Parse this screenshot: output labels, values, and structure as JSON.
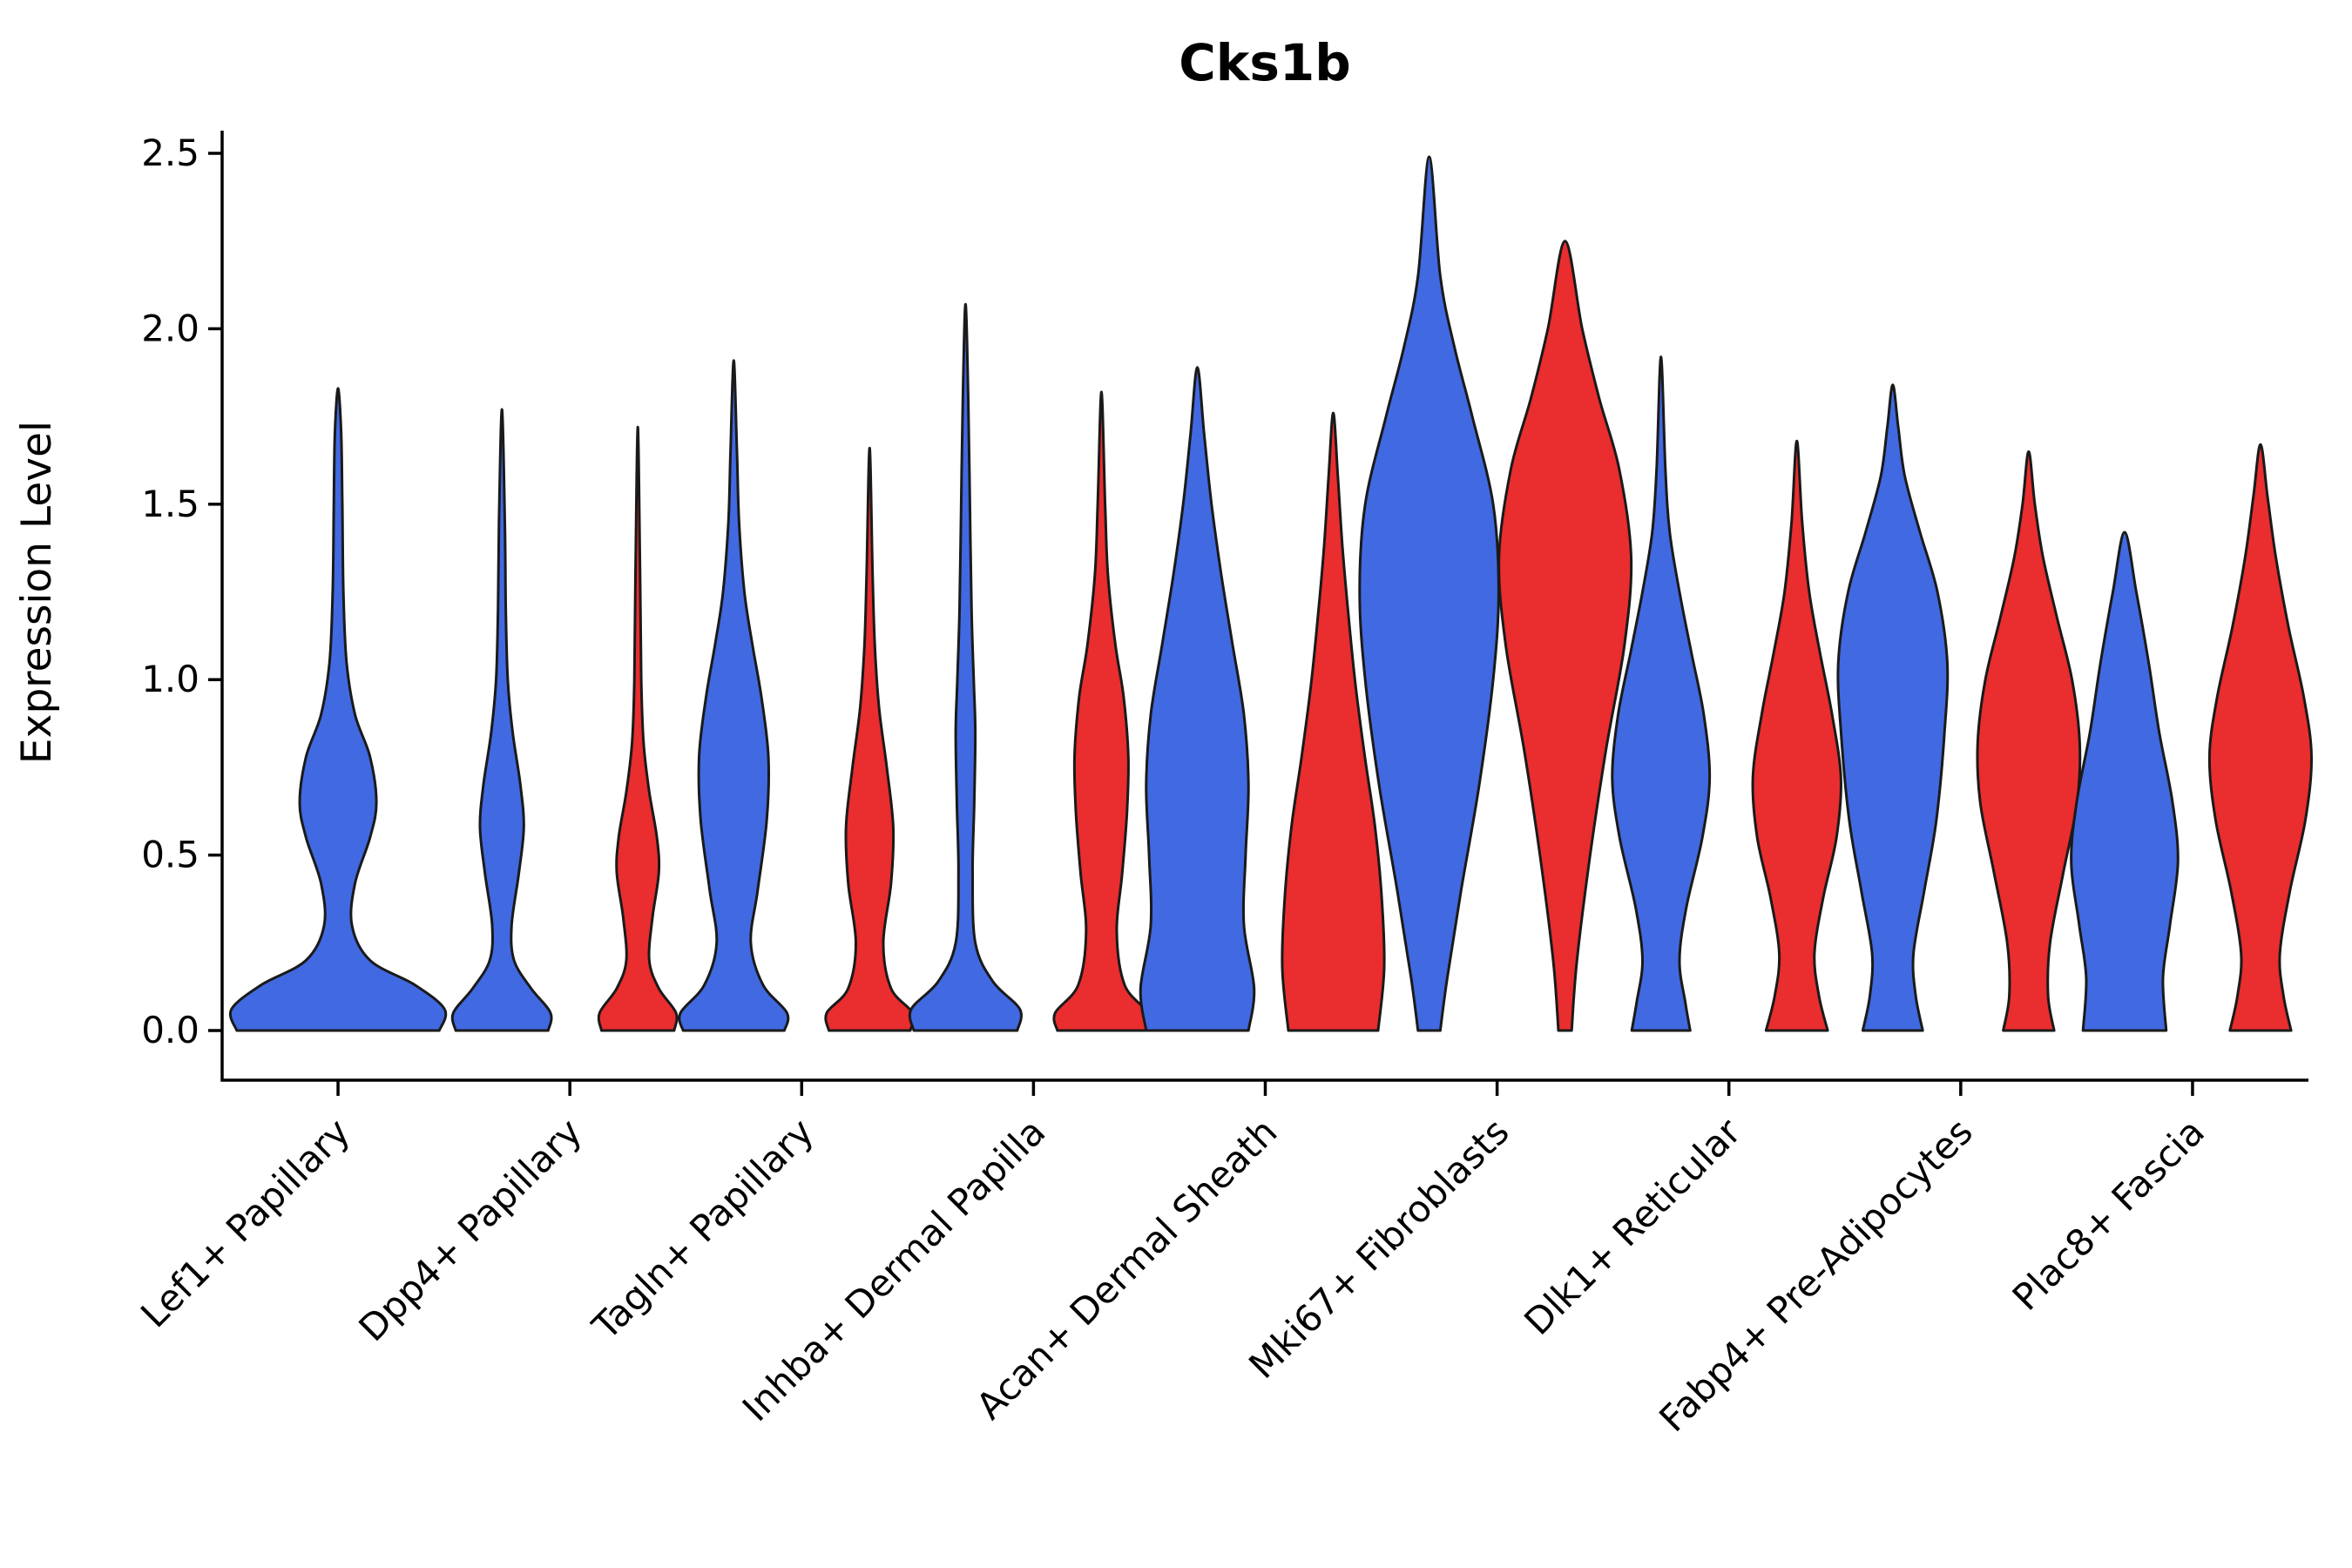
{
  "figure": {
    "title": "Cks1b",
    "ylabel": "Expression Level"
  },
  "chart_data": {
    "type": "violin",
    "title": "Cks1b",
    "xlabel": "",
    "ylabel": "Expression Level",
    "ylim": [
      0,
      2.58
    ],
    "yticks": [
      0.0,
      0.5,
      1.0,
      1.5,
      2.0,
      2.5
    ],
    "grid": false,
    "legend": "none",
    "groups": [
      {
        "name": "group-1",
        "color": "#4169E1"
      },
      {
        "name": "group-2",
        "color": "#EA2D2E"
      }
    ],
    "categories": [
      "Lef1+ Papillary",
      "Dpp4+ Papillary",
      "Tagln+ Papillary",
      "Inhba+ Dermal Papilla",
      "Acan+ Dermal Sheath",
      "Mki67+ Fibroblasts",
      "Dlk1+ Reticular",
      "Fabp4+ Pre-Adipocytes",
      "Plac8+ Fascia"
    ],
    "violins": [
      {
        "category": "Lef1+ Papillary",
        "category_index": 0,
        "group": 0,
        "position": "center",
        "peak_expression": 1.83,
        "rel_width": 0.92,
        "profile": [
          [
            0,
            0.95
          ],
          [
            0.06,
            1.0
          ],
          [
            0.13,
            0.72
          ],
          [
            0.2,
            0.3
          ],
          [
            0.3,
            0.13
          ],
          [
            0.42,
            0.16
          ],
          [
            0.55,
            0.3
          ],
          [
            0.65,
            0.36
          ],
          [
            0.78,
            0.3
          ],
          [
            0.9,
            0.16
          ],
          [
            1.05,
            0.08
          ],
          [
            1.25,
            0.05
          ],
          [
            1.5,
            0.04
          ],
          [
            1.7,
            0.03
          ],
          [
            1.83,
            0
          ]
        ]
      },
      {
        "category": "Dpp4+ Papillary",
        "category_index": 1,
        "group": 0,
        "position": "left",
        "peak_expression": 1.77,
        "rel_width": 0.42,
        "profile": [
          [
            0,
            0.95
          ],
          [
            0.05,
            1.0
          ],
          [
            0.12,
            0.6
          ],
          [
            0.2,
            0.25
          ],
          [
            0.3,
            0.2
          ],
          [
            0.45,
            0.35
          ],
          [
            0.58,
            0.45
          ],
          [
            0.7,
            0.38
          ],
          [
            0.85,
            0.22
          ],
          [
            1.0,
            0.12
          ],
          [
            1.2,
            0.08
          ],
          [
            1.45,
            0.06
          ],
          [
            1.77,
            0
          ]
        ]
      },
      {
        "category": "Dpp4+ Papillary",
        "category_index": 1,
        "group": 1,
        "position": "right",
        "peak_expression": 1.72,
        "rel_width": 0.33,
        "profile": [
          [
            0,
            0.95
          ],
          [
            0.05,
            1.0
          ],
          [
            0.12,
            0.55
          ],
          [
            0.2,
            0.3
          ],
          [
            0.32,
            0.38
          ],
          [
            0.45,
            0.55
          ],
          [
            0.55,
            0.5
          ],
          [
            0.68,
            0.3
          ],
          [
            0.82,
            0.15
          ],
          [
            1.0,
            0.09
          ],
          [
            1.3,
            0.06
          ],
          [
            1.72,
            0
          ]
        ]
      },
      {
        "category": "Tagln+ Papillary",
        "category_index": 2,
        "group": 0,
        "position": "left",
        "peak_expression": 1.91,
        "rel_width": 0.46,
        "profile": [
          [
            0,
            0.95
          ],
          [
            0.05,
            1.0
          ],
          [
            0.13,
            0.55
          ],
          [
            0.25,
            0.32
          ],
          [
            0.4,
            0.45
          ],
          [
            0.6,
            0.62
          ],
          [
            0.78,
            0.65
          ],
          [
            0.95,
            0.52
          ],
          [
            1.1,
            0.35
          ],
          [
            1.25,
            0.2
          ],
          [
            1.45,
            0.1
          ],
          [
            1.65,
            0.06
          ],
          [
            1.91,
            0
          ]
        ]
      },
      {
        "category": "Tagln+ Papillary",
        "category_index": 2,
        "group": 1,
        "position": "right",
        "peak_expression": 1.66,
        "rel_width": 0.37,
        "profile": [
          [
            0,
            0.95
          ],
          [
            0.05,
            1.0
          ],
          [
            0.12,
            0.5
          ],
          [
            0.25,
            0.32
          ],
          [
            0.42,
            0.5
          ],
          [
            0.58,
            0.55
          ],
          [
            0.75,
            0.4
          ],
          [
            0.92,
            0.22
          ],
          [
            1.1,
            0.12
          ],
          [
            1.3,
            0.07
          ],
          [
            1.66,
            0
          ]
        ]
      },
      {
        "category": "Inhba+ Dermal Papilla",
        "category_index": 3,
        "group": 0,
        "position": "left",
        "peak_expression": 2.07,
        "rel_width": 0.47,
        "profile": [
          [
            0,
            0.95
          ],
          [
            0.06,
            1.0
          ],
          [
            0.14,
            0.5
          ],
          [
            0.25,
            0.18
          ],
          [
            0.45,
            0.13
          ],
          [
            0.65,
            0.16
          ],
          [
            0.85,
            0.18
          ],
          [
            1.0,
            0.15
          ],
          [
            1.2,
            0.11
          ],
          [
            1.5,
            0.08
          ],
          [
            1.8,
            0.05
          ],
          [
            2.07,
            0
          ]
        ]
      },
      {
        "category": "Inhba+ Dermal Papilla",
        "category_index": 3,
        "group": 1,
        "position": "right",
        "peak_expression": 1.82,
        "rel_width": 0.4,
        "profile": [
          [
            0,
            0.95
          ],
          [
            0.05,
            1.0
          ],
          [
            0.13,
            0.5
          ],
          [
            0.28,
            0.33
          ],
          [
            0.45,
            0.45
          ],
          [
            0.62,
            0.55
          ],
          [
            0.78,
            0.58
          ],
          [
            0.95,
            0.48
          ],
          [
            1.1,
            0.3
          ],
          [
            1.3,
            0.14
          ],
          [
            1.5,
            0.08
          ],
          [
            1.82,
            0
          ]
        ]
      },
      {
        "category": "Acan+ Dermal Sheath",
        "category_index": 4,
        "group": 0,
        "position": "left",
        "peak_expression": 1.89,
        "rel_width": 0.49,
        "profile": [
          [
            0,
            0.9
          ],
          [
            0.12,
            1.0
          ],
          [
            0.3,
            0.82
          ],
          [
            0.5,
            0.85
          ],
          [
            0.7,
            0.9
          ],
          [
            0.9,
            0.82
          ],
          [
            1.1,
            0.62
          ],
          [
            1.3,
            0.42
          ],
          [
            1.5,
            0.25
          ],
          [
            1.7,
            0.12
          ],
          [
            1.89,
            0
          ]
        ]
      },
      {
        "category": "Acan+ Dermal Sheath",
        "category_index": 4,
        "group": 1,
        "position": "right",
        "peak_expression": 1.76,
        "rel_width": 0.44,
        "profile": [
          [
            0,
            0.88
          ],
          [
            0.18,
            1.0
          ],
          [
            0.38,
            0.95
          ],
          [
            0.58,
            0.82
          ],
          [
            0.78,
            0.62
          ],
          [
            0.98,
            0.44
          ],
          [
            1.18,
            0.3
          ],
          [
            1.38,
            0.18
          ],
          [
            1.58,
            0.09
          ],
          [
            1.76,
            0
          ]
        ]
      },
      {
        "category": "Mki67+ Fibroblasts",
        "category_index": 5,
        "group": 0,
        "position": "left",
        "peak_expression": 2.49,
        "rel_width": 0.6,
        "profile": [
          [
            0,
            0.16
          ],
          [
            0.15,
            0.26
          ],
          [
            0.4,
            0.46
          ],
          [
            0.7,
            0.72
          ],
          [
            1.0,
            0.92
          ],
          [
            1.25,
            1.0
          ],
          [
            1.5,
            0.92
          ],
          [
            1.75,
            0.62
          ],
          [
            1.95,
            0.36
          ],
          [
            2.15,
            0.16
          ],
          [
            2.49,
            0
          ]
        ]
      },
      {
        "category": "Mki67+ Fibroblasts",
        "category_index": 5,
        "group": 1,
        "position": "right",
        "peak_expression": 2.25,
        "rel_width": 0.57,
        "profile": [
          [
            0,
            0.1
          ],
          [
            0.2,
            0.18
          ],
          [
            0.5,
            0.38
          ],
          [
            0.8,
            0.62
          ],
          [
            1.1,
            0.9
          ],
          [
            1.35,
            1.0
          ],
          [
            1.6,
            0.82
          ],
          [
            1.8,
            0.52
          ],
          [
            2.0,
            0.26
          ],
          [
            2.25,
            0
          ]
        ]
      },
      {
        "category": "Dlk1+ Reticular",
        "category_index": 6,
        "group": 0,
        "position": "left",
        "peak_expression": 1.92,
        "rel_width": 0.42,
        "profile": [
          [
            0,
            0.6
          ],
          [
            0.08,
            0.5
          ],
          [
            0.2,
            0.38
          ],
          [
            0.35,
            0.52
          ],
          [
            0.55,
            0.85
          ],
          [
            0.72,
            1.0
          ],
          [
            0.9,
            0.88
          ],
          [
            1.08,
            0.62
          ],
          [
            1.25,
            0.38
          ],
          [
            1.42,
            0.18
          ],
          [
            1.6,
            0.09
          ],
          [
            1.92,
            0
          ]
        ]
      },
      {
        "category": "Dlk1+ Reticular",
        "category_index": 6,
        "group": 1,
        "position": "right",
        "peak_expression": 1.68,
        "rel_width": 0.38,
        "profile": [
          [
            0,
            0.7
          ],
          [
            0.1,
            0.5
          ],
          [
            0.22,
            0.4
          ],
          [
            0.38,
            0.6
          ],
          [
            0.55,
            0.9
          ],
          [
            0.72,
            1.0
          ],
          [
            0.9,
            0.8
          ],
          [
            1.08,
            0.52
          ],
          [
            1.25,
            0.28
          ],
          [
            1.45,
            0.12
          ],
          [
            1.68,
            0
          ]
        ]
      },
      {
        "category": "Fabp4+ Pre-Adipocytes",
        "category_index": 7,
        "group": 0,
        "position": "left",
        "peak_expression": 1.84,
        "rel_width": 0.47,
        "profile": [
          [
            0,
            0.55
          ],
          [
            0.1,
            0.42
          ],
          [
            0.22,
            0.38
          ],
          [
            0.4,
            0.58
          ],
          [
            0.6,
            0.8
          ],
          [
            0.85,
            0.95
          ],
          [
            1.05,
            1.0
          ],
          [
            1.25,
            0.82
          ],
          [
            1.42,
            0.5
          ],
          [
            1.58,
            0.22
          ],
          [
            1.72,
            0.1
          ],
          [
            1.84,
            0
          ]
        ]
      },
      {
        "category": "Fabp4+ Pre-Adipocytes",
        "category_index": 7,
        "group": 1,
        "position": "right",
        "peak_expression": 1.65,
        "rel_width": 0.44,
        "profile": [
          [
            0,
            0.5
          ],
          [
            0.1,
            0.38
          ],
          [
            0.25,
            0.42
          ],
          [
            0.45,
            0.68
          ],
          [
            0.65,
            0.95
          ],
          [
            0.82,
            1.0
          ],
          [
            1.0,
            0.85
          ],
          [
            1.18,
            0.55
          ],
          [
            1.35,
            0.28
          ],
          [
            1.5,
            0.12
          ],
          [
            1.65,
            0
          ]
        ]
      },
      {
        "category": "Plac8+ Fascia",
        "category_index": 8,
        "group": 0,
        "position": "left",
        "peak_expression": 1.42,
        "rel_width": 0.46,
        "profile": [
          [
            0,
            0.78
          ],
          [
            0.15,
            0.72
          ],
          [
            0.3,
            0.85
          ],
          [
            0.48,
            1.0
          ],
          [
            0.65,
            0.9
          ],
          [
            0.85,
            0.65
          ],
          [
            1.05,
            0.45
          ],
          [
            1.25,
            0.22
          ],
          [
            1.42,
            0
          ]
        ]
      },
      {
        "category": "Plac8+ Fascia",
        "category_index": 8,
        "group": 1,
        "position": "right",
        "peak_expression": 1.67,
        "rel_width": 0.44,
        "profile": [
          [
            0,
            0.6
          ],
          [
            0.1,
            0.45
          ],
          [
            0.22,
            0.38
          ],
          [
            0.4,
            0.58
          ],
          [
            0.6,
            0.88
          ],
          [
            0.78,
            1.0
          ],
          [
            0.95,
            0.85
          ],
          [
            1.15,
            0.55
          ],
          [
            1.35,
            0.3
          ],
          [
            1.52,
            0.14
          ],
          [
            1.67,
            0
          ]
        ]
      }
    ]
  }
}
